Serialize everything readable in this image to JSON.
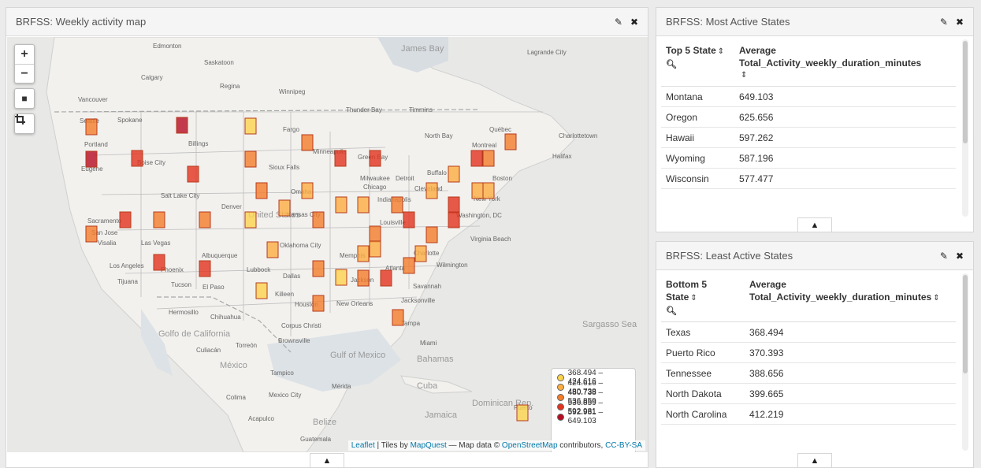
{
  "map_panel": {
    "title": "BRFSS: Weekly activity map",
    "zoom_in": "+",
    "zoom_out": "−",
    "legend": [
      {
        "label": "368.494 – 424.616",
        "color": "#fcd34d"
      },
      {
        "label": "424.616 – 480.738",
        "color": "#fdae42"
      },
      {
        "label": "480.738 – 536.859",
        "color": "#f47d2a"
      },
      {
        "label": "536.859 – 592.981",
        "color": "#e2331f"
      },
      {
        "label": "592.981 – 649.103",
        "color": "#b50d22"
      }
    ],
    "attribution": {
      "leaflet": "Leaflet",
      "sep1": " | Tiles by ",
      "mapquest": "MapQuest",
      "sep2": " — Map data © ",
      "osm": "OpenStreetMap",
      "sep3": " contributors, ",
      "license": "CC-BY-SA"
    },
    "place_labels": [
      "Edmonton",
      "Saskatoon",
      "Calgary",
      "Regina",
      "Winnipeg",
      "James Bay",
      "Vancouver",
      "Seattle",
      "Spokane",
      "Thunder Bay",
      "Timmins",
      "Lagrande City",
      "Portland",
      "Billings",
      "Fargo",
      "North Bay",
      "Québec",
      "Charlottetown",
      "Eugene",
      "Boise City",
      "Sioux Falls",
      "Minneapolis",
      "Green Bay",
      "Montreal",
      "Halifax",
      "Salt Lake City",
      "Milwaukee",
      "Detroit",
      "Buffalo",
      "Boston",
      "United States",
      "Omaha",
      "Chicago",
      "Cleveland",
      "New York",
      "Denver",
      "Kansas City",
      "Indianapolis",
      "Sacramento",
      "San Jose",
      "Visalia",
      "Las Vegas",
      "Louisville",
      "Washington, DC",
      "Virginia Beach",
      "Albuquerque",
      "Oklahoma City",
      "Memphis",
      "Charlotte",
      "Wilmington",
      "Los Angeles",
      "Phoenix",
      "Lubbock",
      "Dallas",
      "Atlanta",
      "Tijuana",
      "Tucson",
      "El Paso",
      "Jackson",
      "Savannah",
      "Killeen",
      "Houston",
      "New Orleans",
      "Jacksonville",
      "Hermosillo",
      "Chihuahua",
      "Corpus Christi",
      "Tampa",
      "Golfo de California",
      "Culiacán",
      "Torreón",
      "Brownsville",
      "Miami",
      "Sargasso Sea",
      "Gulf of Mexico",
      "Bahamas",
      "México",
      "Tampico",
      "Cuba",
      "Mérida",
      "Colima",
      "Mexico City",
      "Dominican Rep.",
      "Puerto",
      "Acapulco",
      "Belize",
      "Jamaica",
      "Guatemala"
    ]
  },
  "top_panel": {
    "title": "BRFSS: Most Active States",
    "col1": "Top 5 State",
    "col2": "Average Total_Activity_weekly_duration_minutes",
    "rows": [
      {
        "state": "Montana",
        "value": "649.103"
      },
      {
        "state": "Oregon",
        "value": "625.656"
      },
      {
        "state": "Hawaii",
        "value": "597.262"
      },
      {
        "state": "Wyoming",
        "value": "587.196"
      },
      {
        "state": "Wisconsin",
        "value": "577.477"
      }
    ]
  },
  "bottom_panel": {
    "title": "BRFSS: Least Active States",
    "col1": "Bottom 5 State",
    "col2a": "Average",
    "col2b": "Total_Activity_weekly_duration_minutes",
    "rows": [
      {
        "state": "Texas",
        "value": "368.494"
      },
      {
        "state": "Puerto Rico",
        "value": "370.393"
      },
      {
        "state": "Tennessee",
        "value": "388.656"
      },
      {
        "state": "North Dakota",
        "value": "399.665"
      },
      {
        "state": "North Carolina",
        "value": "412.219"
      }
    ]
  },
  "icons": {
    "edit": "pencil-icon",
    "close": "close-icon",
    "collapse": "chevron-up-icon",
    "search": "search-icon",
    "sort": "sort-icon",
    "draw_rect": "square-icon",
    "crop": "crop-icon"
  }
}
